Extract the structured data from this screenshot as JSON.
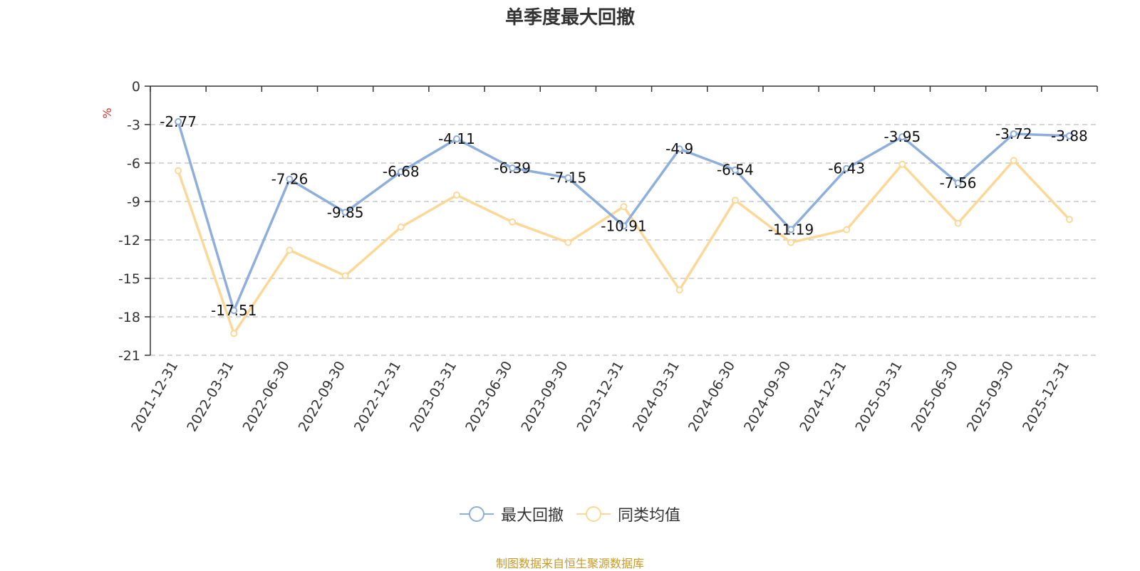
{
  "chart_data": {
    "type": "line",
    "title": "单季度最大回撤",
    "ylabel": "%",
    "ylim": [
      -21,
      0
    ],
    "yticks": [
      0,
      -3,
      -6,
      -9,
      -12,
      -15,
      -18,
      -21
    ],
    "grid": true,
    "legend_position": "bottom",
    "categories": [
      "2021-12-31",
      "2022-03-31",
      "2022-06-30",
      "2022-09-30",
      "2022-12-31",
      "2023-03-31",
      "2023-06-30",
      "2023-09-30",
      "2023-12-31",
      "2024-03-31",
      "2024-06-30",
      "2024-09-30",
      "2024-12-31",
      "2025-03-31",
      "2025-06-30",
      "2025-09-30",
      "2025-12-31"
    ],
    "series": [
      {
        "name": "最大回撤",
        "color": "#8eaedb",
        "values": [
          -2.77,
          -17.51,
          -7.26,
          -9.85,
          -6.68,
          -4.11,
          -6.39,
          -7.15,
          -10.91,
          -4.9,
          -6.54,
          -11.19,
          -6.43,
          -3.95,
          -7.56,
          -3.72,
          -3.88
        ],
        "show_labels": true
      },
      {
        "name": "同类均值",
        "color": "#fcd898",
        "values": [
          -6.6,
          -19.3,
          -12.8,
          -14.8,
          -11.0,
          -8.5,
          -10.6,
          -12.2,
          -9.4,
          -15.9,
          -8.9,
          -12.2,
          -11.2,
          -6.1,
          -10.7,
          -5.8,
          -10.4
        ],
        "show_labels": false
      }
    ]
  },
  "source_note": "制图数据来自恒生聚源数据库"
}
